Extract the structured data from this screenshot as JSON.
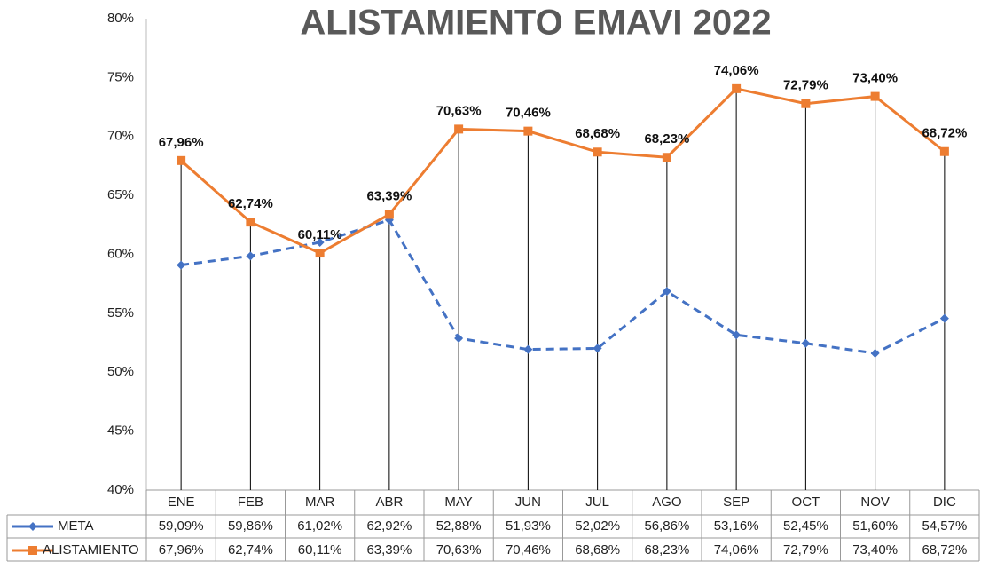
{
  "chart_data": {
    "type": "line",
    "title": "ALISTAMIENTO  EMAVI 2022",
    "categories": [
      "ENE",
      "FEB",
      "MAR",
      "ABR",
      "MAY",
      "JUN",
      "JUL",
      "AGO",
      "SEP",
      "OCT",
      "NOV",
      "DIC"
    ],
    "series": [
      {
        "name": "META",
        "color": "#4472c4",
        "dashed": true,
        "marker": "diamond",
        "values": [
          59.09,
          59.86,
          61.02,
          62.92,
          52.88,
          51.93,
          52.02,
          56.86,
          53.16,
          52.45,
          51.6,
          54.57
        ],
        "value_labels": [
          "59,09%",
          "59,86%",
          "61,02%",
          "62,92%",
          "52,88%",
          "51,93%",
          "52,02%",
          "56,86%",
          "53,16%",
          "52,45%",
          "51,60%",
          "54,57%"
        ]
      },
      {
        "name": "ALISTAMIENTO",
        "color": "#ed7d31",
        "dashed": false,
        "marker": "square",
        "values": [
          67.96,
          62.74,
          60.11,
          63.39,
          70.63,
          70.46,
          68.68,
          68.23,
          74.06,
          72.79,
          73.4,
          68.72
        ],
        "value_labels": [
          "67,96%",
          "62,74%",
          "60,11%",
          "63,39%",
          "70,63%",
          "70,46%",
          "68,68%",
          "68,23%",
          "74,06%",
          "72,79%",
          "73,40%",
          "68,72%"
        ]
      }
    ],
    "ylim": [
      40,
      80
    ],
    "yticks": [
      {
        "value": 40,
        "label": "40%"
      },
      {
        "value": 45,
        "label": "45%"
      },
      {
        "value": 50,
        "label": "50%"
      },
      {
        "value": 55,
        "label": "55%"
      },
      {
        "value": 60,
        "label": "60%"
      },
      {
        "value": 65,
        "label": "65%"
      },
      {
        "value": 70,
        "label": "70%"
      },
      {
        "value": 75,
        "label": "75%"
      },
      {
        "value": 80,
        "label": "80%"
      }
    ],
    "grid": false
  }
}
